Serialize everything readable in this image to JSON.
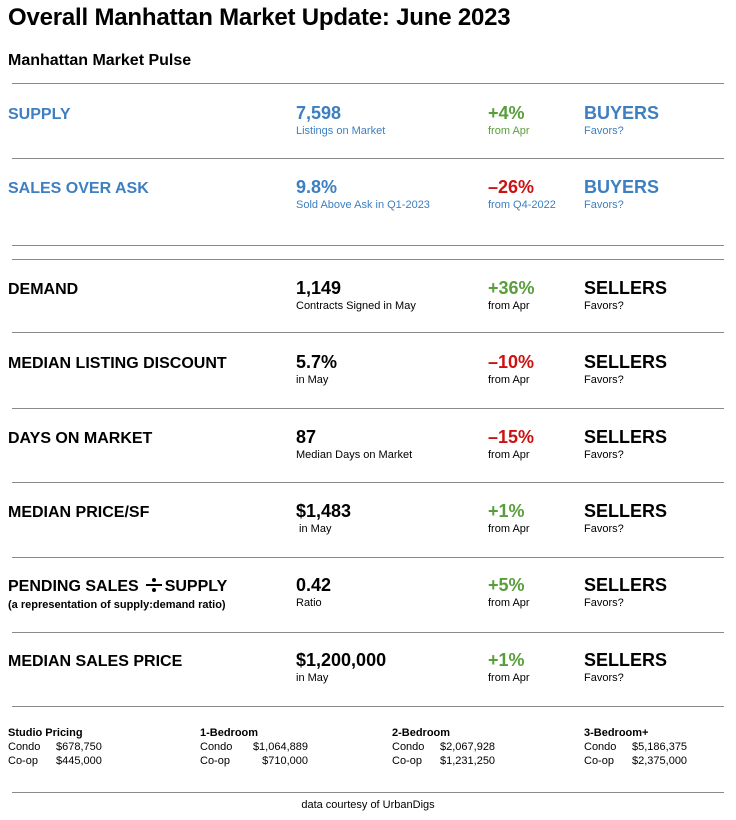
{
  "title": "Overall Manhattan Market Update: June 2023",
  "subtitle": "Manhattan Market Pulse",
  "metrics": [
    {
      "label": "SUPPLY",
      "value": "7,598",
      "value_sub": "Listings on Market",
      "change": "+4%",
      "change_sub": "from Apr",
      "favors": "BUYERS",
      "favors_sub": "Favors?"
    },
    {
      "label": "SALES OVER ASK",
      "value": "9.8%",
      "value_sub": "Sold Above Ask in Q1-2023",
      "change": "–26%",
      "change_sub": "from Q4-2022",
      "favors": "BUYERS",
      "favors_sub": "Favors?"
    },
    {
      "label": "DEMAND",
      "value": "1,149",
      "value_sub": "Contracts Signed in May",
      "change": "+36%",
      "change_sub": "from Apr",
      "favors": "SELLERS",
      "favors_sub": "Favors?"
    },
    {
      "label": "MEDIAN LISTING DISCOUNT",
      "value": "5.7%",
      "value_sub": "in May",
      "change": "–10%",
      "change_sub": "from Apr",
      "favors": "SELLERS",
      "favors_sub": "Favors?"
    },
    {
      "label": "DAYS ON MARKET",
      "value": "87",
      "value_sub": "Median Days on Market",
      "change": "–15%",
      "change_sub": "from Apr",
      "favors": "SELLERS",
      "favors_sub": "Favors?"
    },
    {
      "label": "MEDIAN PRICE/SF",
      "value": "$1,483",
      "value_sub": " in May",
      "change": "+1%",
      "change_sub": "from Apr",
      "favors": "SELLERS",
      "favors_sub": "Favors?"
    },
    {
      "label_pre": "PENDING SALES",
      "label_post": "SUPPLY",
      "label_note": "(a representation of supply:demand ratio)",
      "value": "0.42",
      "value_sub": "Ratio",
      "change": "+5%",
      "change_sub": "from Apr",
      "favors": "SELLERS",
      "favors_sub": "Favors?"
    },
    {
      "label": "MEDIAN SALES PRICE",
      "value": "$1,200,000",
      "value_sub": "in May",
      "change": "+1%",
      "change_sub": "from Apr",
      "favors": "SELLERS",
      "favors_sub": "Favors?"
    }
  ],
  "pricing": [
    {
      "heading": "Studio Pricing",
      "condo_label": "Condo",
      "condo_value": "$678,750",
      "coop_label": "Co-op",
      "coop_value": "$445,000"
    },
    {
      "heading": "1-Bedroom",
      "condo_label": "Condo",
      "condo_value": "$1,064,889",
      "coop_label": "Co-op",
      "coop_value": "$710,000"
    },
    {
      "heading": "2-Bedroom",
      "condo_label": "Condo",
      "condo_value": "$2,067,928",
      "coop_label": "Co-op",
      "coop_value": "$1,231,250"
    },
    {
      "heading": "3-Bedroom+",
      "condo_label": "Condo",
      "condo_value": "$5,186,375",
      "coop_label": "Co-op",
      "coop_value": "$2,375,000"
    }
  ],
  "footer": "data courtesy of UrbanDigs",
  "colors": {
    "buyers_blue": "#3d7fc1",
    "increase_green": "#5a9e3c",
    "decrease_red": "#cc1111"
  }
}
